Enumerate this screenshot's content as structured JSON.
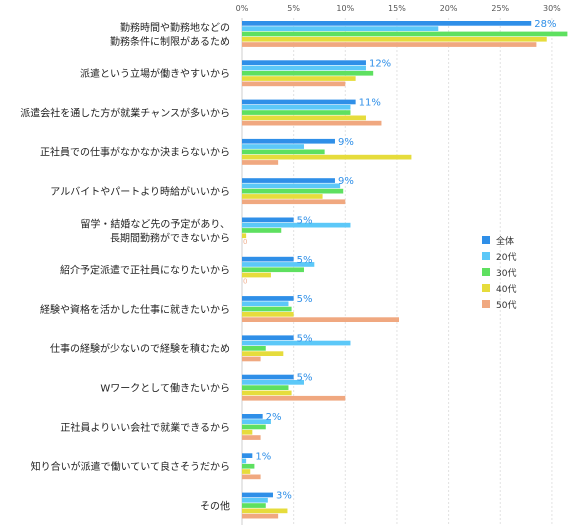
{
  "chart_data": {
    "type": "bar",
    "orientation": "horizontal",
    "tick_labels": [
      "0%",
      "5%",
      "10%",
      "15%",
      "20%",
      "25%",
      "30%"
    ],
    "xlim": [
      0,
      32
    ],
    "grid": true,
    "legend_position": "right",
    "categories": [
      [
        "勤務時間や勤務地などの",
        "勤務条件に制限があるため"
      ],
      [
        "派遣という立場が働きやすいから"
      ],
      [
        "派遣会社を通した方が就業チャンスが多いから"
      ],
      [
        "正社員での仕事がなかなか決まらないから"
      ],
      [
        "アルバイトやパートより時給がいいから"
      ],
      [
        "留学・結婚など先の予定があり、",
        "長期間勤務ができないから"
      ],
      [
        "紹介予定派遣で正社員になりたいから"
      ],
      [
        "経験や資格を活かした仕事に就きたいから"
      ],
      [
        "仕事の経験が少ないので経験を積むため"
      ],
      [
        "Wワークとして働きたいから"
      ],
      [
        "正社員よりいい会社で就業できるから"
      ],
      [
        "知り合いが派遣で働いていて良さそうだから"
      ],
      [
        "その他"
      ]
    ],
    "data_labels": [
      "28%",
      "12%",
      "11%",
      "9%",
      "9%",
      "5%",
      "5%",
      "5%",
      "5%",
      "5%",
      "2%",
      "1%",
      "3%"
    ],
    "zero_label": "0",
    "series": [
      {
        "name": "全体",
        "color": "#2f8fe8",
        "values": [
          28,
          12,
          11,
          9,
          9,
          5,
          5,
          5,
          5,
          5,
          2,
          1,
          3
        ]
      },
      {
        "name": "20代",
        "color": "#5cc8f8",
        "values": [
          19,
          12,
          10.5,
          6,
          9.5,
          10.5,
          7,
          4.5,
          10.5,
          6,
          2.8,
          0.4,
          2.5
        ]
      },
      {
        "name": "30代",
        "color": "#5ee060",
        "values": [
          31.5,
          12.7,
          10.5,
          8,
          9.8,
          3.8,
          6,
          4.8,
          2.3,
          4.5,
          2.3,
          1.2,
          2.3
        ]
      },
      {
        "name": "40代",
        "color": "#e6dc3c",
        "values": [
          29.5,
          11,
          12,
          16.4,
          7.8,
          0.4,
          2.8,
          5,
          4,
          4.8,
          1,
          0.8,
          4.4
        ]
      },
      {
        "name": "50代",
        "color": "#f0a880",
        "values": [
          28.5,
          10,
          13.5,
          3.5,
          10,
          0,
          0,
          15.2,
          1.8,
          10,
          1.8,
          1.8,
          3.5
        ]
      }
    ]
  }
}
